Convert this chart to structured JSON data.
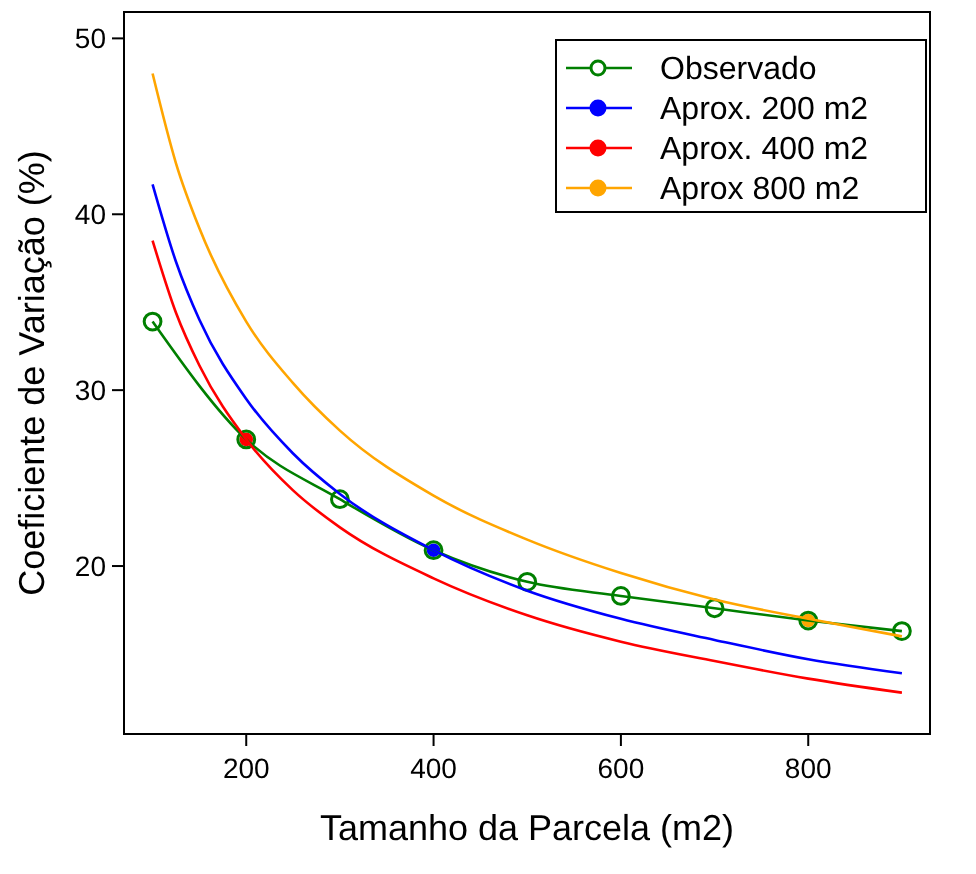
{
  "chart_data": {
    "type": "line",
    "xlabel": "Tamanho da Parcela (m2)",
    "ylabel": "Coeficiente de Variação (%)",
    "xlim": [
      69.5,
      930
    ],
    "ylim": [
      10.45,
      51.5
    ],
    "xticks": [
      200,
      400,
      600,
      800
    ],
    "yticks": [
      20,
      30,
      40,
      50
    ],
    "grid": false,
    "legend": "top right",
    "series": [
      {
        "name": "Observado",
        "color": "#007f00",
        "marker": "circle",
        "x": [
          100,
          200,
          300,
          400,
          500,
          600,
          700,
          800,
          900
        ],
        "values": [
          33.9,
          27.2,
          23.8,
          20.9,
          19.1,
          18.3,
          17.6,
          16.9,
          16.3
        ]
      },
      {
        "name": "Aprox. 200 m2",
        "color": "#0000ff",
        "x": [
          100,
          125,
          150,
          200,
          250,
          300,
          400,
          500,
          600,
          700,
          800,
          900
        ],
        "values": [
          41.7,
          37.3,
          34.0,
          29.5,
          26.4,
          24.1,
          20.9,
          18.6,
          17.0,
          15.8,
          14.7,
          13.9
        ]
      },
      {
        "name": "Aprox. 400 m2",
        "color": "#ff0000",
        "x": [
          100,
          125,
          150,
          200,
          250,
          300,
          400,
          500,
          600,
          700,
          800,
          900
        ],
        "values": [
          38.5,
          34.4,
          31.4,
          27.2,
          24.3,
          22.2,
          19.3,
          17.2,
          15.7,
          14.6,
          13.6,
          12.8
        ]
      },
      {
        "name": "Aprox 800 m2",
        "color": "#ffa500",
        "x": [
          100,
          125,
          150,
          200,
          250,
          300,
          400,
          500,
          600,
          700,
          800,
          900
        ],
        "values": [
          48.0,
          42.9,
          39.2,
          33.9,
          30.4,
          27.7,
          24.0,
          21.5,
          19.6,
          18.1,
          17.0,
          16.0
        ]
      },
      {
        "type": "scatter",
        "color": "#0000ff",
        "x": [
          400
        ],
        "values": [
          20.9
        ]
      },
      {
        "type": "scatter",
        "color": "#ff0000",
        "x": [
          200
        ],
        "values": [
          27.2
        ]
      },
      {
        "type": "scatter",
        "color": "#ffa500",
        "x": [
          800
        ],
        "values": [
          16.9
        ]
      }
    ]
  }
}
